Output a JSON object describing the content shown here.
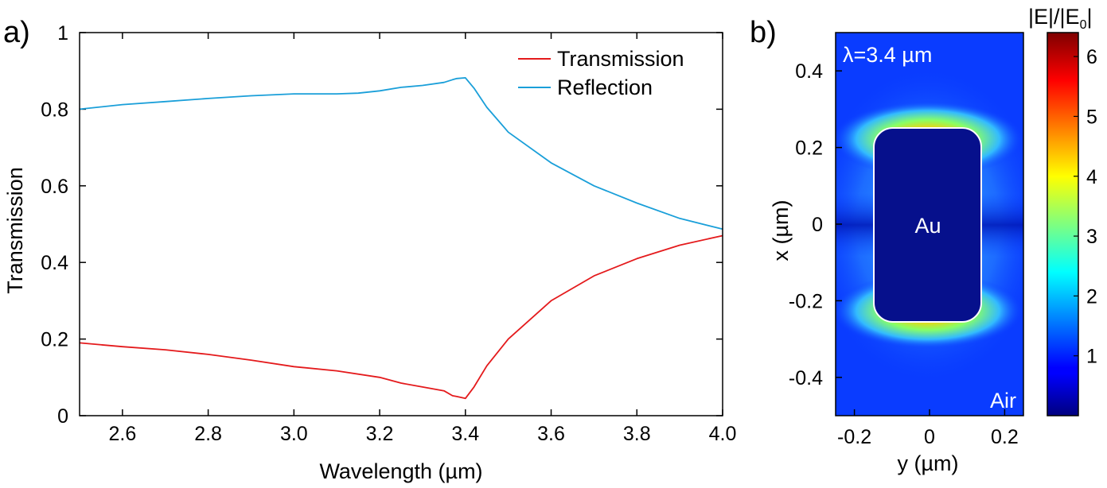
{
  "chart_data": [
    {
      "type": "line",
      "panel_label": "a)",
      "xlabel": "Wavelength (µm)",
      "ylabel": "Transmission",
      "xlim": [
        2.5,
        4.0
      ],
      "ylim": [
        0,
        1
      ],
      "xticks": [
        "2.6",
        "2.8",
        "3.0",
        "3.2",
        "3.4",
        "3.6",
        "3.8",
        "4.0"
      ],
      "yticks": [
        "0",
        "0.2",
        "0.4",
        "0.6",
        "0.8",
        "1"
      ],
      "legend_position": "top-right",
      "series": [
        {
          "name": "Transmission",
          "color": "#e41a1c",
          "x": [
            2.5,
            2.6,
            2.7,
            2.8,
            2.9,
            3.0,
            3.1,
            3.2,
            3.25,
            3.3,
            3.35,
            3.37,
            3.38,
            3.4,
            3.42,
            3.45,
            3.5,
            3.6,
            3.7,
            3.8,
            3.9,
            4.0
          ],
          "y": [
            0.19,
            0.18,
            0.172,
            0.16,
            0.145,
            0.128,
            0.117,
            0.1,
            0.085,
            0.075,
            0.065,
            0.052,
            0.05,
            0.045,
            0.075,
            0.13,
            0.2,
            0.3,
            0.365,
            0.41,
            0.445,
            0.47
          ]
        },
        {
          "name": "Reflection",
          "color": "#1a9fd9",
          "x": [
            2.5,
            2.6,
            2.7,
            2.8,
            2.9,
            3.0,
            3.1,
            3.15,
            3.2,
            3.25,
            3.3,
            3.35,
            3.37,
            3.38,
            3.4,
            3.42,
            3.45,
            3.5,
            3.6,
            3.7,
            3.8,
            3.9,
            4.0
          ],
          "y": [
            0.8,
            0.812,
            0.82,
            0.828,
            0.835,
            0.84,
            0.84,
            0.842,
            0.848,
            0.857,
            0.862,
            0.87,
            0.877,
            0.88,
            0.882,
            0.855,
            0.805,
            0.74,
            0.66,
            0.6,
            0.555,
            0.515,
            0.487
          ]
        }
      ]
    },
    {
      "type": "heatmap",
      "panel_label": "b)",
      "xlabel": "y (µm)",
      "ylabel": "x (µm)",
      "xlim": [
        -0.25,
        0.25
      ],
      "ylim": [
        -0.5,
        0.5
      ],
      "xticks": [
        "-0.2",
        "0",
        "0.2"
      ],
      "yticks": [
        "0.4",
        "0.2",
        "0",
        "-0.2",
        "-0.4"
      ],
      "annotation_wavelength": "λ=3.4 µm",
      "annotation_particle": "Au",
      "annotation_medium": "Air",
      "particle_extent": {
        "y": [
          -0.14,
          0.14
        ],
        "x": [
          -0.25,
          0.25
        ]
      },
      "colorbar": {
        "title": "|E|/|E",
        "title_sub": "0",
        "title_end": "|",
        "range": [
          0,
          6.4
        ],
        "ticks": [
          "1",
          "2",
          "3",
          "4",
          "5",
          "6"
        ]
      }
    }
  ]
}
